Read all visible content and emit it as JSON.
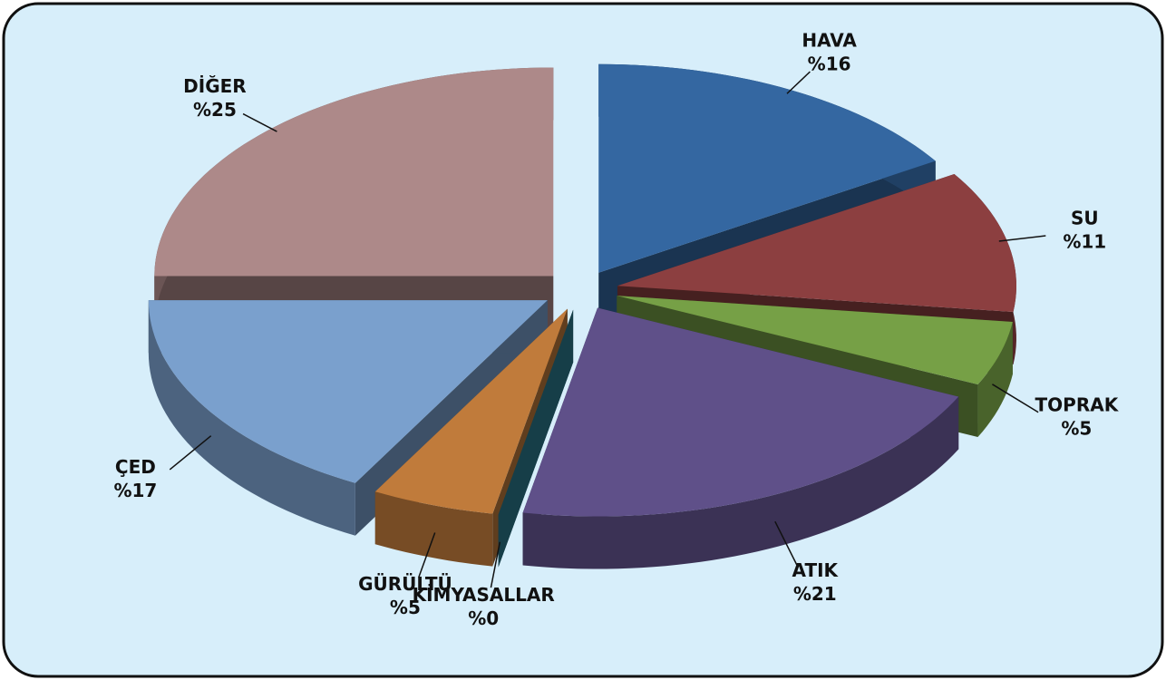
{
  "chart_data": {
    "type": "pie",
    "categories": [
      "HAVA",
      "SU",
      "TOPRAK",
      "ATIK",
      "KİMYASALLAR",
      "GÜRÜLTÜ",
      "ÇED",
      "DİĞER"
    ],
    "values": [
      16,
      11,
      5,
      21,
      0,
      5,
      17,
      25
    ],
    "value_labels": [
      "%16",
      "%11",
      "%5",
      "%21",
      "%0",
      "%5",
      "%17",
      "%25"
    ],
    "colors": [
      "#3467a1",
      "#8c3f40",
      "#76a046",
      "#5f5089",
      "#2b7b8f",
      "#c07b3b",
      "#7aa0cd",
      "#ad8989"
    ]
  }
}
